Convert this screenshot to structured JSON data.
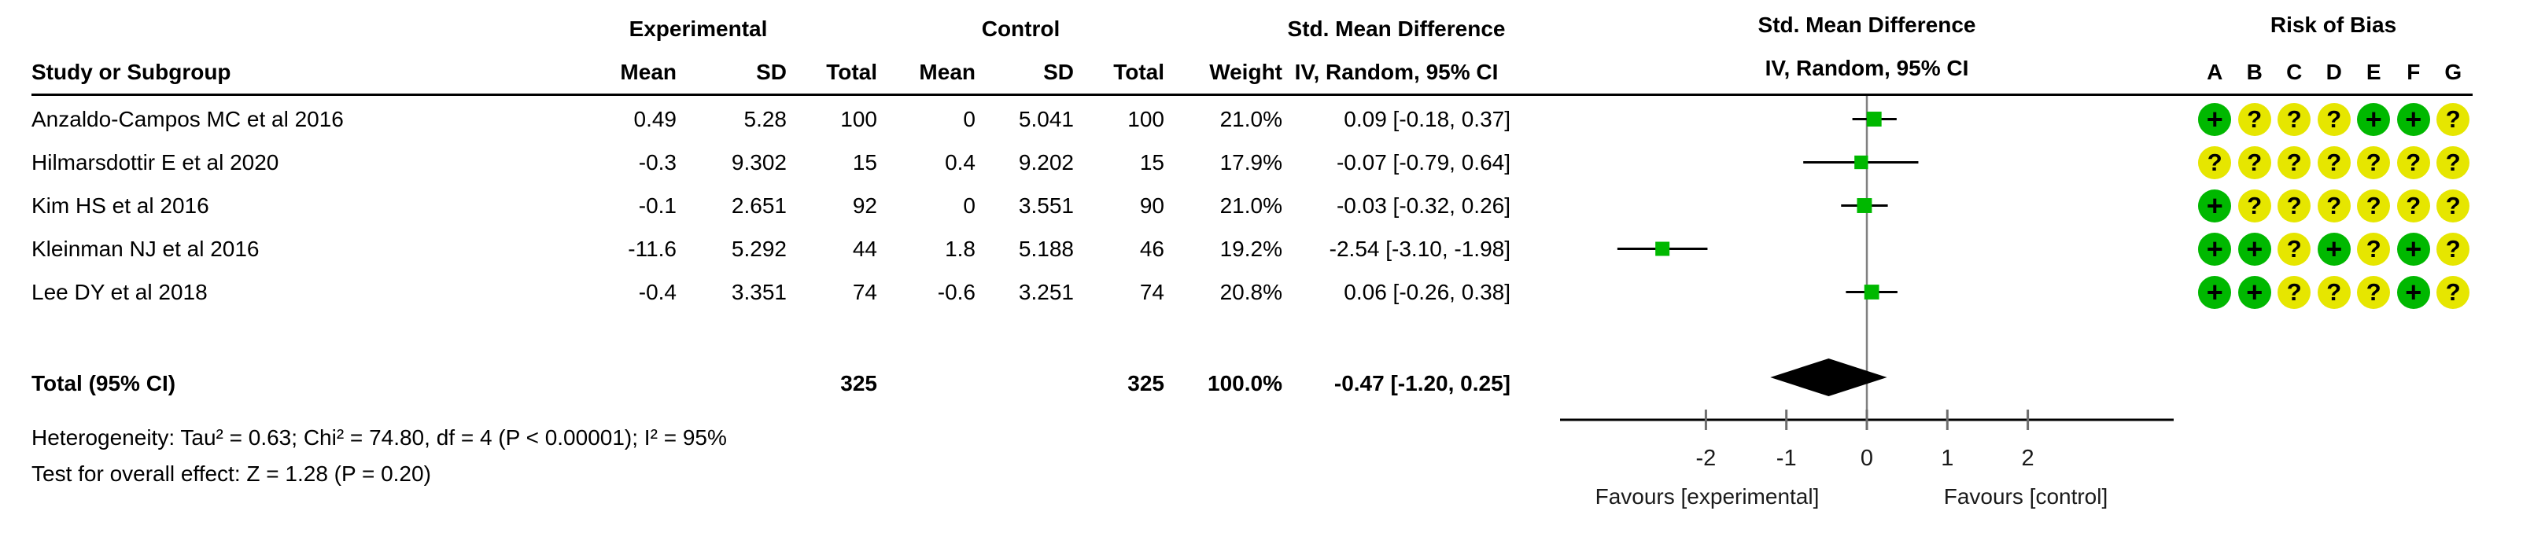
{
  "header": {
    "col_groups": {
      "experimental": "Experimental",
      "control": "Control",
      "smd_text": "Std. Mean Difference",
      "smd_plot": "Std. Mean Difference",
      "risk_of_bias": "Risk of Bias"
    },
    "cols": {
      "study": "Study or Subgroup",
      "mean": "Mean",
      "sd": "SD",
      "total": "Total",
      "weight": "Weight",
      "ci_text": "IV, Random, 95% CI",
      "ci_plot": "IV, Random, 95% CI"
    },
    "rob_letters": [
      "A",
      "B",
      "C",
      "D",
      "E",
      "F",
      "G"
    ]
  },
  "studies": [
    {
      "name": "Anzaldo-Campos MC et al 2016",
      "exp_mean": "0.49",
      "exp_sd": "5.28",
      "exp_total": "100",
      "ctrl_mean": "0",
      "ctrl_sd": "5.041",
      "ctrl_total": "100",
      "weight": "21.0%",
      "ci": "0.09 [-0.18, 0.37]",
      "rob": [
        "+",
        "?",
        "?",
        "?",
        "+",
        "+",
        "?"
      ]
    },
    {
      "name": "Hilmarsdottir E et al 2020",
      "exp_mean": "-0.3",
      "exp_sd": "9.302",
      "exp_total": "15",
      "ctrl_mean": "0.4",
      "ctrl_sd": "9.202",
      "ctrl_total": "15",
      "weight": "17.9%",
      "ci": "-0.07 [-0.79, 0.64]",
      "rob": [
        "?",
        "?",
        "?",
        "?",
        "?",
        "?",
        "?"
      ]
    },
    {
      "name": "Kim HS et al 2016",
      "exp_mean": "-0.1",
      "exp_sd": "2.651",
      "exp_total": "92",
      "ctrl_mean": "0",
      "ctrl_sd": "3.551",
      "ctrl_total": "90",
      "weight": "21.0%",
      "ci": "-0.03 [-0.32, 0.26]",
      "rob": [
        "+",
        "?",
        "?",
        "?",
        "?",
        "?",
        "?"
      ]
    },
    {
      "name": "Kleinman NJ et al 2016",
      "exp_mean": "-11.6",
      "exp_sd": "5.292",
      "exp_total": "44",
      "ctrl_mean": "1.8",
      "ctrl_sd": "5.188",
      "ctrl_total": "46",
      "weight": "19.2%",
      "ci": "-2.54 [-3.10, -1.98]",
      "rob": [
        "+",
        "+",
        "?",
        "+",
        "?",
        "+",
        "?"
      ]
    },
    {
      "name": "Lee DY et al 2018",
      "exp_mean": "-0.4",
      "exp_sd": "3.351",
      "exp_total": "74",
      "ctrl_mean": "-0.6",
      "ctrl_sd": "3.251",
      "ctrl_total": "74",
      "weight": "20.8%",
      "ci": "0.06 [-0.26, 0.38]",
      "rob": [
        "+",
        "+",
        "?",
        "?",
        "?",
        "+",
        "?"
      ]
    }
  ],
  "total": {
    "label": "Total (95% CI)",
    "exp_total": "325",
    "ctrl_total": "325",
    "weight": "100.0%",
    "ci": "-0.47 [-1.20, 0.25]"
  },
  "footer": {
    "heterogeneity": "Heterogeneity: Tau² = 0.63; Chi² = 74.80, df = 4 (P < 0.00001); I² = 95%",
    "overall_effect": "Test for overall effect: Z = 1.28 (P = 0.20)"
  },
  "colors": {
    "rob_green": "#00b800",
    "rob_yellow": "#e6e600",
    "marker_green": "#00b800",
    "zero_line_gray": "#808080",
    "tick_gray": "#6e6e6e"
  },
  "chart_data": {
    "type": "scatter",
    "subtype": "forest-plot",
    "effect_measure": "Std. Mean Difference, IV, Random, 95% CI",
    "x_axis": {
      "ticks": [
        -2,
        -1,
        0,
        1,
        2
      ],
      "range": [
        -3.8,
        3.8
      ],
      "label_left": "Favours [experimental]",
      "label_right": "Favours [control]"
    },
    "studies": [
      {
        "name": "Anzaldo-Campos MC et al 2016",
        "est": 0.09,
        "ci": [
          -0.18,
          0.37
        ],
        "weight": 21.0
      },
      {
        "name": "Hilmarsdottir E et al 2020",
        "est": -0.07,
        "ci": [
          -0.79,
          0.64
        ],
        "weight": 17.9
      },
      {
        "name": "Kim HS et al 2016",
        "est": -0.03,
        "ci": [
          -0.32,
          0.26
        ],
        "weight": 21.0
      },
      {
        "name": "Kleinman NJ et al 2016",
        "est": -2.54,
        "ci": [
          -3.1,
          -1.98
        ],
        "weight": 19.2
      },
      {
        "name": "Lee DY et al 2018",
        "est": 0.06,
        "ci": [
          -0.26,
          0.38
        ],
        "weight": 20.8
      }
    ],
    "total": {
      "label": "Total (95% CI)",
      "est": -0.47,
      "ci": [
        -1.2,
        0.25
      ],
      "weight": 100.0
    }
  }
}
